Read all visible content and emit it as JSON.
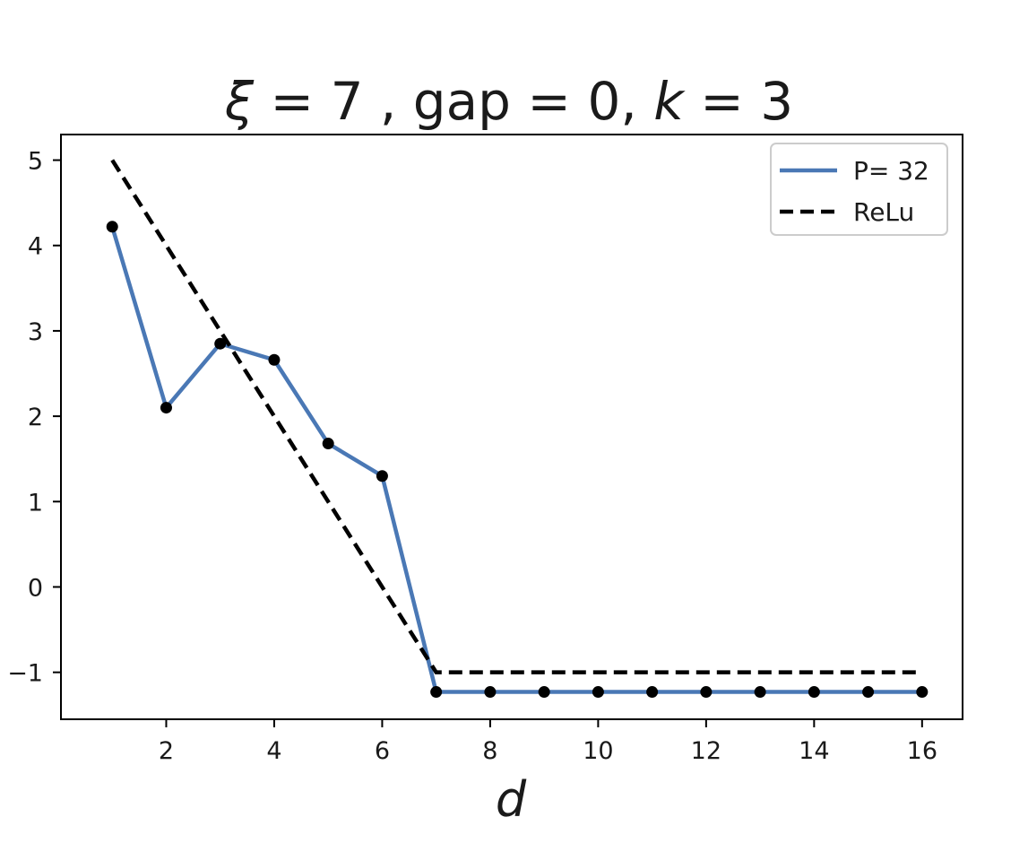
{
  "chart_data": {
    "type": "line",
    "title": "ξ = 7 , gap  = 0, k = 3",
    "title_parts": {
      "xi_symbol": "ξ",
      "xi_value": " = 7 , gap  = 0, ",
      "k_symbol": "k",
      "k_value": " = 3"
    },
    "xlabel": "d",
    "ylabel": "",
    "xlim": [
      0.05,
      16.75
    ],
    "ylim": [
      -1.55,
      5.3
    ],
    "xticks": [
      2,
      4,
      6,
      8,
      10,
      12,
      14,
      16
    ],
    "xtick_labels": [
      "2",
      "4",
      "6",
      "8",
      "10",
      "12",
      "14",
      "16"
    ],
    "yticks": [
      -1,
      0,
      1,
      2,
      3,
      4,
      5
    ],
    "ytick_labels": [
      "−1",
      "0",
      "1",
      "2",
      "3",
      "4",
      "5"
    ],
    "grid": false,
    "legend_position": "top-right",
    "series": [
      {
        "name": "P= 32",
        "style": "solid",
        "color": "#4a78b5",
        "markers": true,
        "marker_color": "#000000",
        "x": [
          1,
          2,
          3,
          4,
          5,
          6,
          7,
          8,
          9,
          10,
          11,
          12,
          13,
          14,
          15,
          16
        ],
        "y": [
          4.22,
          2.1,
          2.85,
          2.66,
          1.68,
          1.3,
          -1.23,
          -1.23,
          -1.23,
          -1.23,
          -1.23,
          -1.23,
          -1.23,
          -1.23,
          -1.23,
          -1.23
        ]
      },
      {
        "name": "ReLu",
        "style": "dashed",
        "color": "#000000",
        "markers": false,
        "x": [
          1,
          2,
          3,
          4,
          5,
          6,
          7,
          8,
          9,
          10,
          11,
          12,
          13,
          14,
          15,
          16
        ],
        "y": [
          5,
          4,
          3,
          2,
          1,
          0,
          -1,
          -1,
          -1,
          -1,
          -1,
          -1,
          -1,
          -1,
          -1,
          -1
        ]
      }
    ]
  }
}
